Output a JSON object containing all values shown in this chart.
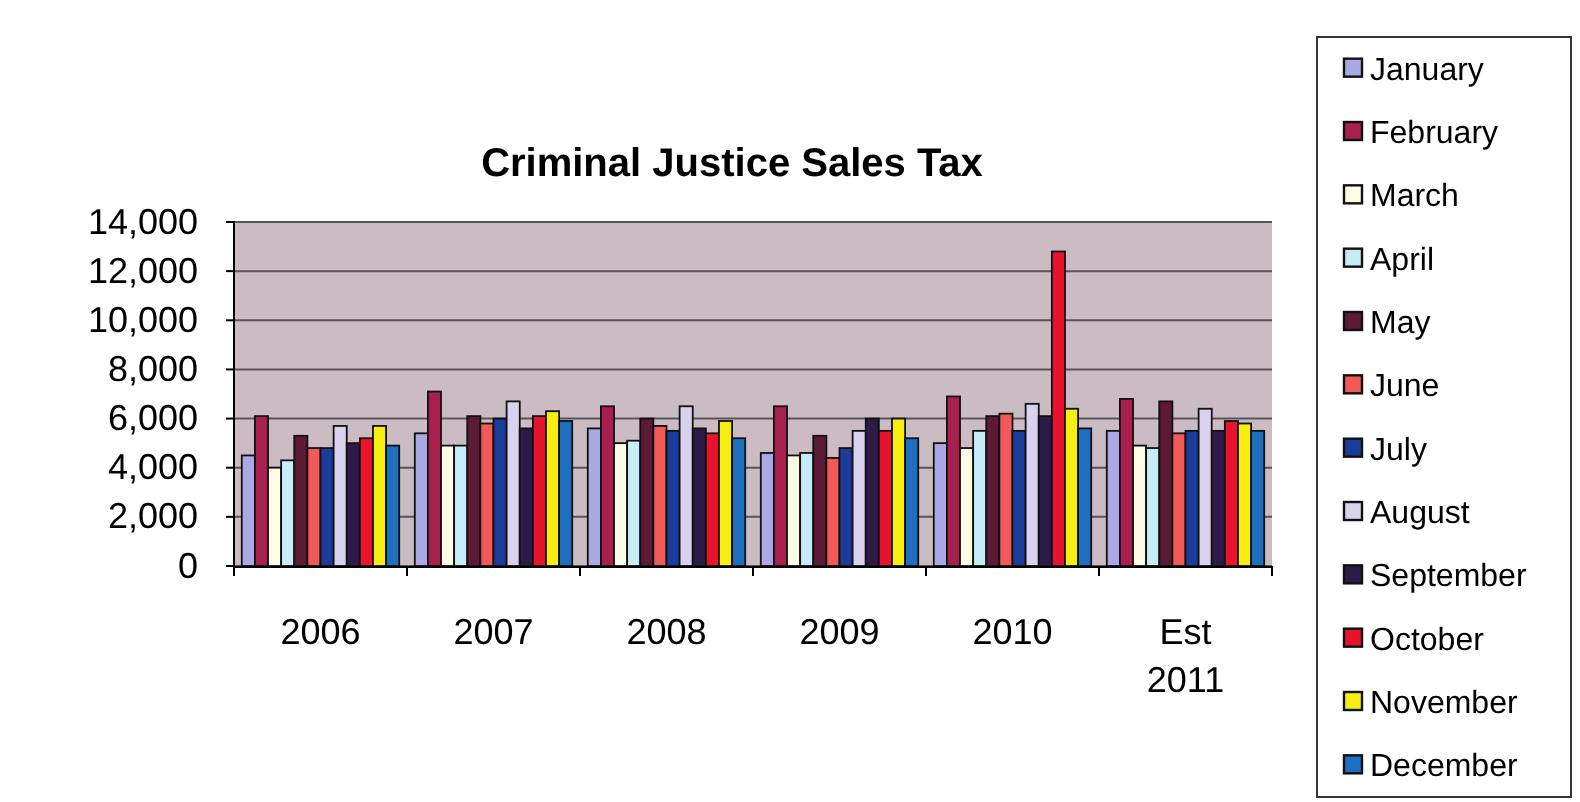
{
  "chart_data": {
    "type": "bar",
    "title": "Criminal Justice Sales Tax",
    "categories": [
      "2006",
      "2007",
      "2008",
      "2009",
      "2010",
      "Est\n2011"
    ],
    "series": [
      {
        "name": "January",
        "color": "#a9a9e6",
        "values": [
          4500,
          5400,
          5600,
          4600,
          5000,
          5500
        ]
      },
      {
        "name": "February",
        "color": "#a8204e",
        "values": [
          6100,
          7100,
          6500,
          6500,
          6900,
          6800
        ]
      },
      {
        "name": "March",
        "color": "#fbfbe6",
        "values": [
          4000,
          4900,
          5000,
          4500,
          4800,
          4900
        ]
      },
      {
        "name": "April",
        "color": "#c6ecf8",
        "values": [
          4300,
          4900,
          5100,
          4600,
          5500,
          4800
        ]
      },
      {
        "name": "May",
        "color": "#5c1a34",
        "values": [
          5300,
          6100,
          6000,
          5300,
          6100,
          6700
        ]
      },
      {
        "name": "June",
        "color": "#f25a5a",
        "values": [
          4800,
          5800,
          5700,
          4400,
          6200,
          5400
        ]
      },
      {
        "name": "July",
        "color": "#1c3c9c",
        "values": [
          4800,
          6000,
          5500,
          4800,
          5500,
          5500
        ]
      },
      {
        "name": "August",
        "color": "#d9d2ef",
        "values": [
          5700,
          6700,
          6500,
          5500,
          6600,
          6400
        ]
      },
      {
        "name": "September",
        "color": "#2c1a48",
        "values": [
          5000,
          5600,
          5600,
          6000,
          6100,
          5500
        ]
      },
      {
        "name": "October",
        "color": "#e8142e",
        "values": [
          5200,
          6100,
          5400,
          5500,
          12800,
          5900
        ]
      },
      {
        "name": "November",
        "color": "#f6ee10",
        "values": [
          5700,
          6300,
          5900,
          6000,
          6400,
          5800
        ]
      },
      {
        "name": "December",
        "color": "#1f6fc0",
        "values": [
          4900,
          5900,
          5200,
          5200,
          5600,
          5500
        ]
      }
    ],
    "ylim": [
      0,
      14000
    ],
    "yticks": [
      0,
      {
        "value": 2000,
        "label": "2,000"
      },
      {
        "value": 4000,
        "label": "4,000"
      },
      {
        "value": 6000,
        "label": "6,000"
      },
      {
        "value": 8000,
        "label": "8,000"
      },
      {
        "value": 10000,
        "label": "10,000"
      },
      {
        "value": 12000,
        "label": "12,000"
      },
      {
        "value": 14000,
        "label": "14,000"
      }
    ],
    "grid": "y",
    "legend": "right"
  }
}
